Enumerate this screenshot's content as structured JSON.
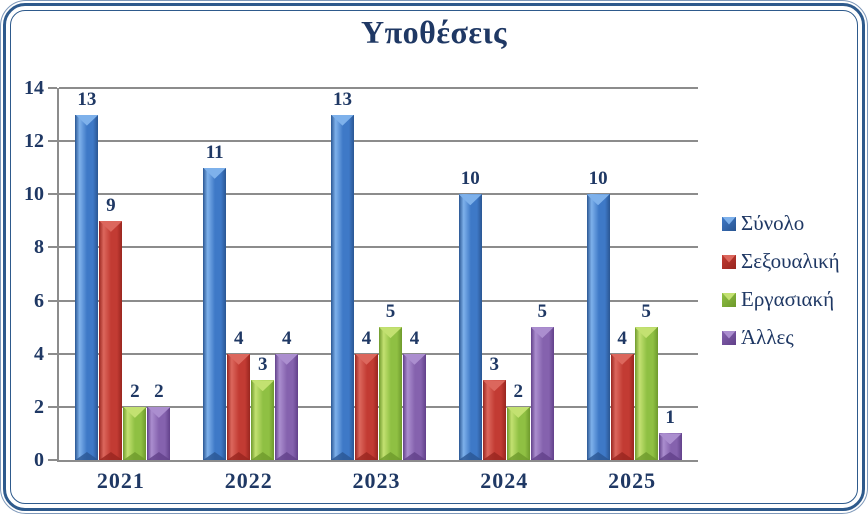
{
  "window": {
    "background": "#FFFFFF",
    "frame_border_color": "#2E5A8C",
    "frame_border_light": "#7E98B9"
  },
  "chart_data": {
    "type": "bar",
    "title": "Υποθέσεις",
    "categories": [
      "2021",
      "2022",
      "2023",
      "2024",
      "2025"
    ],
    "series": [
      {
        "name": "Σύνολο",
        "color": "#3E79C7",
        "color_light": "#7EB1EB",
        "color_dark": "#2A5693",
        "values": [
          13,
          11,
          13,
          10,
          10
        ]
      },
      {
        "name": "Σεξουαλική",
        "color": "#C23B33",
        "color_light": "#DC675D",
        "color_dark": "#99261F",
        "values": [
          9,
          4,
          4,
          3,
          4
        ]
      },
      {
        "name": "Εργασιακή",
        "color": "#8FC043",
        "color_light": "#C3E171",
        "color_dark": "#6E9A2C",
        "values": [
          2,
          3,
          5,
          2,
          5
        ]
      },
      {
        "name": "Άλλες",
        "color": "#8562AE",
        "color_light": "#AB8ECF",
        "color_dark": "#62418A",
        "values": [
          2,
          4,
          4,
          5,
          1
        ]
      }
    ],
    "ylim": [
      0,
      14
    ],
    "yticks": [
      0,
      2,
      4,
      6,
      8,
      10,
      12,
      14
    ],
    "grid": true,
    "gridline_color": "#8C8C8C",
    "axis_text_color": "#1F3864",
    "legend_position": "right",
    "show_value_labels": true
  }
}
